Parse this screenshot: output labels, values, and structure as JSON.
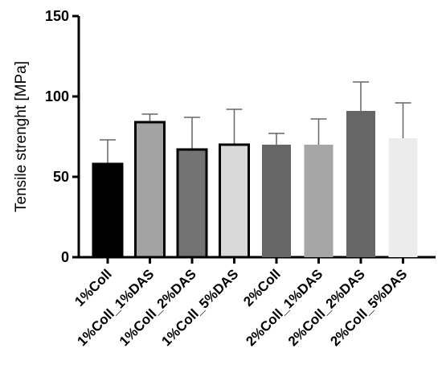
{
  "chart_data": {
    "type": "bar",
    "ylabel": "Tensile strenght [MPa]",
    "ylim": [
      0,
      150
    ],
    "yticks": [
      0,
      50,
      100,
      150
    ],
    "categories": [
      "1%Coll",
      "1%Coll_1%DAS",
      "1%Coll_2%DAS",
      "1%Coll_5%DAS",
      "2%Coll",
      "2%Coll_1%DAS",
      "2%Coll_2%DAS",
      "2%Coll_5%DAS"
    ],
    "values": [
      58,
      84,
      67,
      70,
      70,
      70,
      91,
      74
    ],
    "error_upper": [
      73,
      89,
      87,
      92,
      77,
      86,
      109,
      96
    ],
    "colors": [
      "#000000",
      "#a3a3a3",
      "#737373",
      "#d9d9d9",
      "#666666",
      "#a6a6a6",
      "#666666",
      "#ececec"
    ],
    "outlined": [
      true,
      true,
      true,
      true,
      false,
      false,
      false,
      false
    ],
    "grid": false
  }
}
